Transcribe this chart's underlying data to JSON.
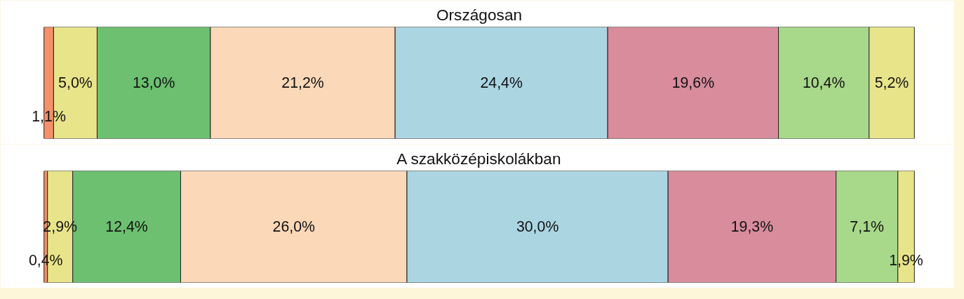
{
  "chart_data": [
    {
      "type": "bar",
      "orientation": "horizontal",
      "stacked": true,
      "title": "Országosan",
      "categories": [
        null
      ],
      "tick_labels": false,
      "series": [
        {
          "color": "#f4906a",
          "values": [
            1.1
          ],
          "value_labels": [
            "1,1%"
          ]
        },
        {
          "color": "#e8e48a",
          "values": [
            5.0
          ],
          "value_labels": [
            "5,0%"
          ]
        },
        {
          "color": "#6cc070",
          "values": [
            13.0
          ],
          "value_labels": [
            "13,0%"
          ]
        },
        {
          "color": "#fad8b8",
          "values": [
            21.2
          ],
          "value_labels": [
            "21,2%"
          ]
        },
        {
          "color": "#acd5e2",
          "values": [
            24.4
          ],
          "value_labels": [
            "24,4%"
          ]
        },
        {
          "color": "#d88c9c",
          "values": [
            19.6
          ],
          "value_labels": [
            "19,6%"
          ]
        },
        {
          "color": "#a8d88a",
          "values": [
            10.4
          ],
          "value_labels": [
            "10,4%"
          ]
        },
        {
          "color": "#e8e48a",
          "values": [
            5.2
          ],
          "value_labels": [
            "5,2%"
          ]
        }
      ]
    },
    {
      "type": "bar",
      "orientation": "horizontal",
      "stacked": true,
      "title": "A szakközépiskolákban",
      "categories": [
        null
      ],
      "tick_labels": false,
      "series": [
        {
          "color": "#f4906a",
          "values": [
            0.4
          ],
          "value_labels": [
            "0,4%"
          ]
        },
        {
          "color": "#e8e48a",
          "values": [
            2.9
          ],
          "value_labels": [
            "2,9%"
          ]
        },
        {
          "color": "#6cc070",
          "values": [
            12.4
          ],
          "value_labels": [
            "12,4%"
          ]
        },
        {
          "color": "#fad8b8",
          "values": [
            26.0
          ],
          "value_labels": [
            "26,0%"
          ]
        },
        {
          "color": "#acd5e2",
          "values": [
            30.0
          ],
          "value_labels": [
            "30,0%"
          ]
        },
        {
          "color": "#d88c9c",
          "values": [
            19.3
          ],
          "value_labels": [
            "19,3%"
          ]
        },
        {
          "color": "#a8d88a",
          "values": [
            7.1
          ],
          "value_labels": [
            "7,1%"
          ]
        },
        {
          "color": "#e8e48a",
          "values": [
            1.9
          ],
          "value_labels": [
            "1,9%"
          ]
        }
      ]
    }
  ]
}
